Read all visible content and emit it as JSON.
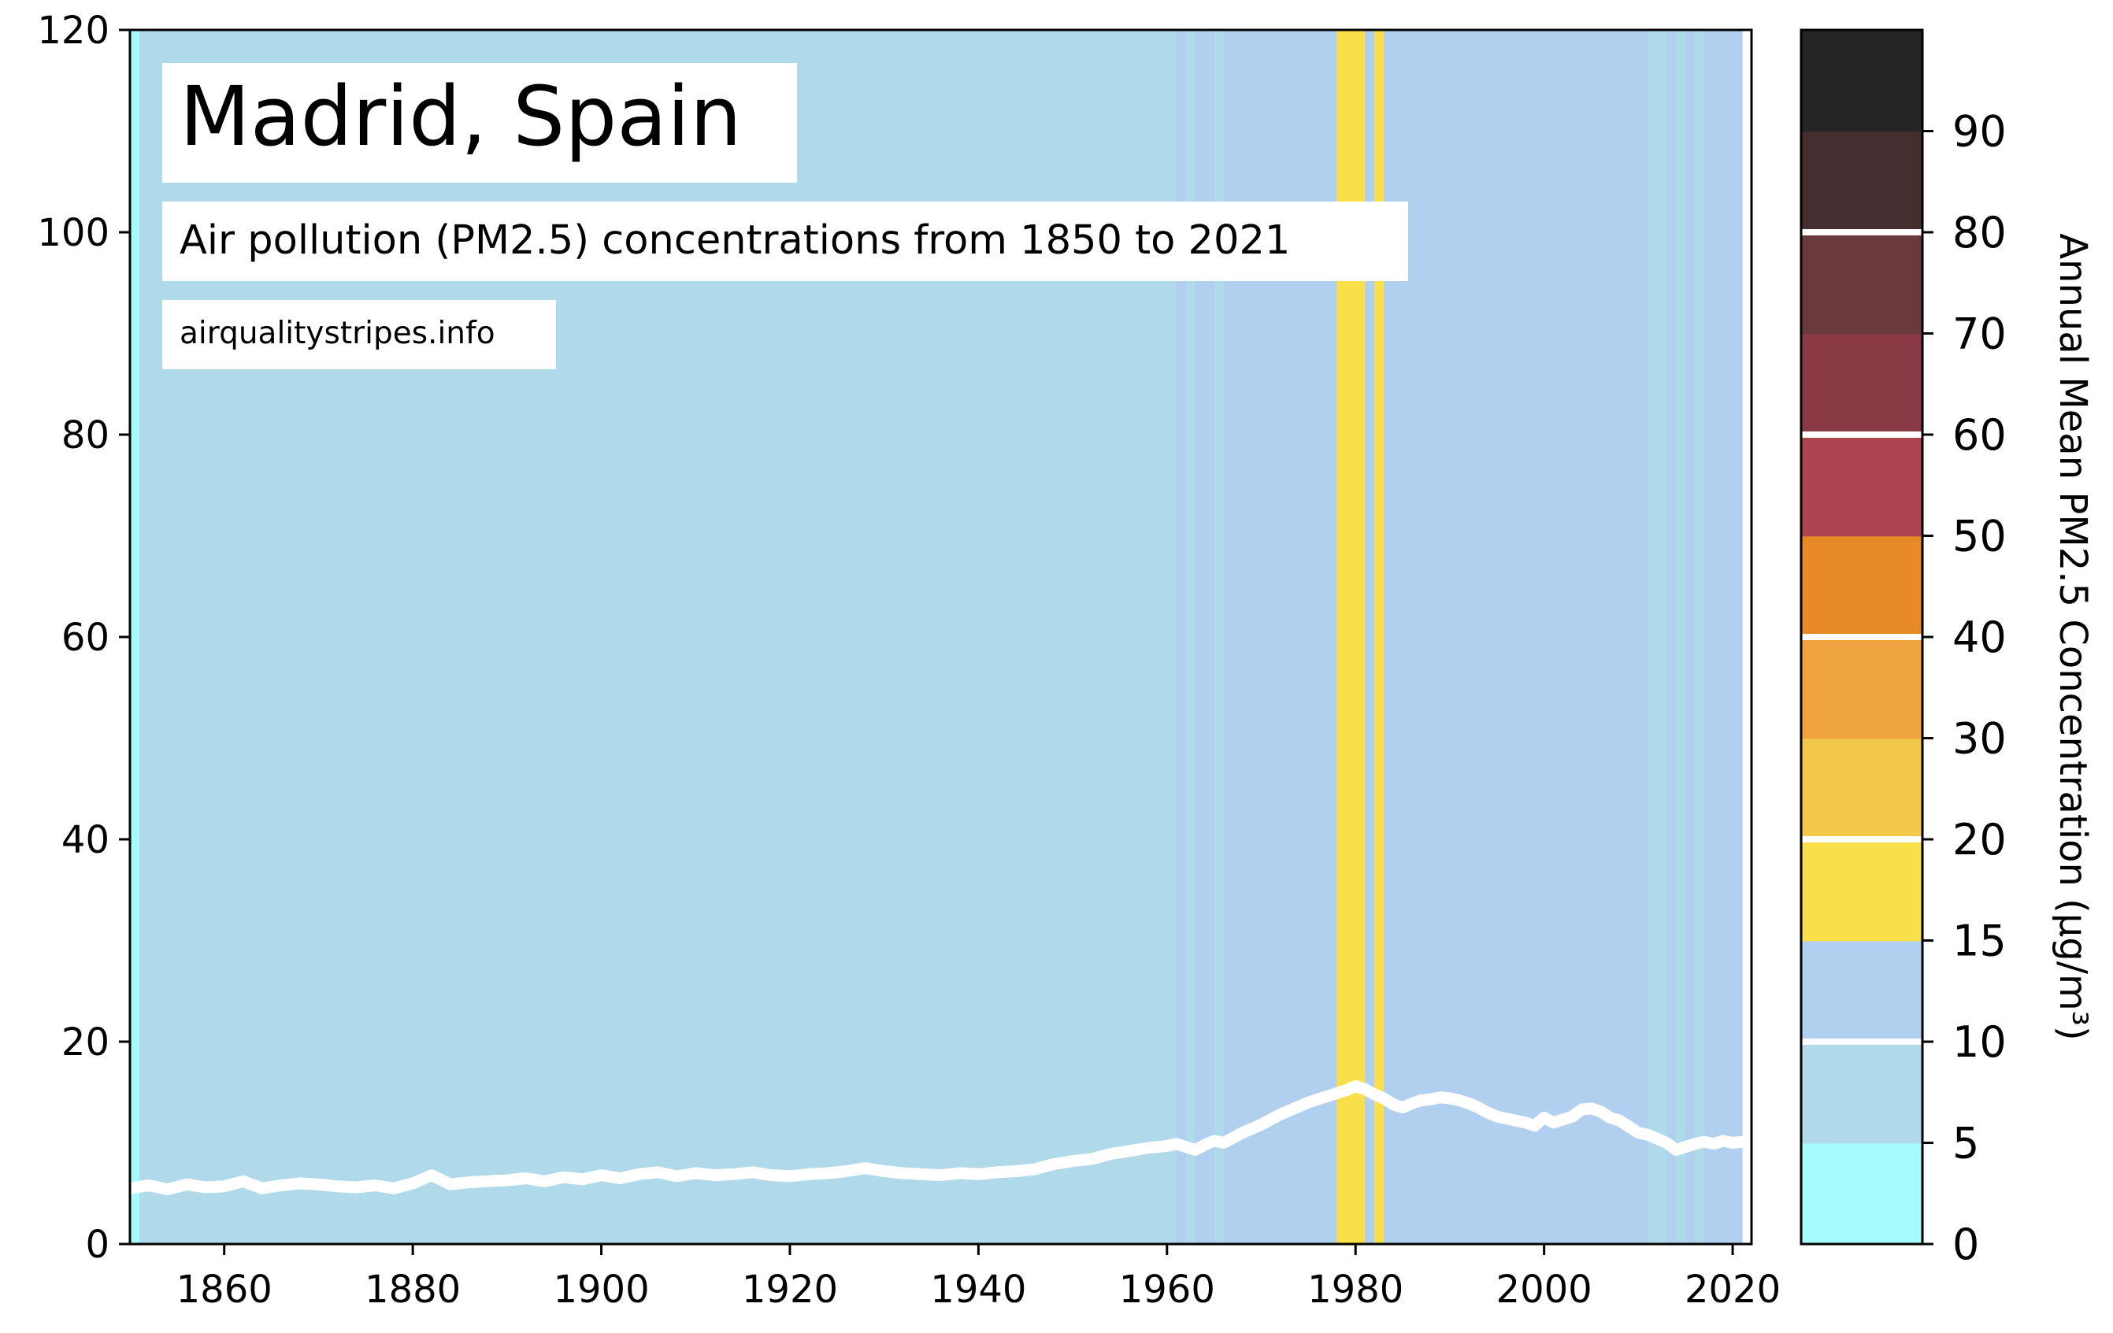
{
  "chart_data": {
    "type": "line",
    "title": "Madrid, Spain",
    "subtitle": "Air pollution (PM2.5) concentrations from 1850 to 2021",
    "source": "airqualitystripes.info",
    "xlabel": "",
    "ylabel": "",
    "xlim": [
      1850,
      2022
    ],
    "ylim": [
      0,
      120
    ],
    "x_ticks": [
      1860,
      1880,
      1900,
      1920,
      1940,
      1960,
      1980,
      2000,
      2020
    ],
    "y_ticks": [
      0,
      20,
      40,
      60,
      80,
      100,
      120
    ],
    "stripe_colors": {
      "cyan": "#a6fcfc",
      "lightblue": "#b0dae9",
      "blue": "#b1cfee",
      "yellow": "#f9e04b"
    },
    "series": [
      {
        "name": "Annual Mean PM2.5",
        "color": "#ffffff",
        "x": [
          1850,
          1852,
          1854,
          1856,
          1858,
          1860,
          1862,
          1864,
          1866,
          1868,
          1870,
          1872,
          1874,
          1876,
          1878,
          1880,
          1882,
          1884,
          1886,
          1888,
          1890,
          1892,
          1894,
          1896,
          1898,
          1900,
          1902,
          1904,
          1906,
          1908,
          1910,
          1912,
          1914,
          1916,
          1918,
          1920,
          1922,
          1924,
          1926,
          1928,
          1930,
          1932,
          1934,
          1936,
          1938,
          1940,
          1942,
          1944,
          1946,
          1948,
          1950,
          1952,
          1954,
          1956,
          1958,
          1960,
          1961,
          1962,
          1963,
          1964,
          1965,
          1966,
          1967,
          1968,
          1969,
          1970,
          1971,
          1972,
          1973,
          1974,
          1975,
          1976,
          1977,
          1978,
          1979,
          1980,
          1981,
          1982,
          1983,
          1984,
          1985,
          1986,
          1987,
          1988,
          1989,
          1990,
          1991,
          1992,
          1993,
          1994,
          1995,
          1996,
          1997,
          1998,
          1999,
          2000,
          2001,
          2002,
          2003,
          2004,
          2005,
          2006,
          2007,
          2008,
          2009,
          2010,
          2011,
          2012,
          2013,
          2014,
          2015,
          2016,
          2017,
          2018,
          2019,
          2020,
          2021,
          2022
        ],
        "values": [
          5.5,
          5.8,
          5.4,
          5.9,
          5.6,
          5.7,
          6.2,
          5.5,
          5.8,
          6.0,
          5.9,
          5.7,
          5.6,
          5.8,
          5.5,
          6.0,
          6.8,
          5.9,
          6.1,
          6.2,
          6.3,
          6.5,
          6.2,
          6.6,
          6.4,
          6.8,
          6.5,
          6.9,
          7.1,
          6.7,
          7.0,
          6.8,
          6.9,
          7.1,
          6.8,
          6.7,
          6.9,
          7.0,
          7.2,
          7.5,
          7.2,
          7.0,
          6.9,
          6.8,
          7.0,
          6.9,
          7.1,
          7.2,
          7.4,
          7.9,
          8.2,
          8.4,
          8.9,
          9.2,
          9.5,
          9.7,
          9.9,
          9.6,
          9.3,
          9.8,
          10.2,
          10.0,
          10.5,
          11.0,
          11.4,
          11.8,
          12.3,
          12.8,
          13.2,
          13.6,
          14.0,
          14.3,
          14.6,
          14.9,
          15.2,
          15.6,
          15.3,
          14.8,
          14.4,
          13.8,
          13.5,
          13.9,
          14.2,
          14.3,
          14.5,
          14.4,
          14.2,
          13.9,
          13.5,
          13.0,
          12.6,
          12.4,
          12.2,
          12.0,
          11.7,
          12.5,
          12.0,
          12.3,
          12.6,
          13.3,
          13.4,
          13.1,
          12.5,
          12.2,
          11.6,
          11.0,
          10.8,
          10.4,
          10.0,
          9.3,
          9.6,
          9.9,
          10.1,
          9.9,
          10.2,
          10.0,
          10.1,
          9.9
        ]
      }
    ],
    "stripes": {
      "years_from": 1850,
      "classes": [
        "cyan",
        "lightblue",
        "lightblue",
        "lightblue",
        "lightblue",
        "lightblue",
        "lightblue",
        "lightblue",
        "lightblue",
        "lightblue",
        "lightblue",
        "lightblue",
        "lightblue",
        "lightblue",
        "lightblue",
        "lightblue",
        "lightblue",
        "lightblue",
        "lightblue",
        "lightblue",
        "lightblue",
        "lightblue",
        "lightblue",
        "lightblue",
        "lightblue",
        "lightblue",
        "lightblue",
        "lightblue",
        "lightblue",
        "lightblue",
        "lightblue",
        "lightblue",
        "lightblue",
        "lightblue",
        "lightblue",
        "lightblue",
        "lightblue",
        "lightblue",
        "lightblue",
        "lightblue",
        "lightblue",
        "lightblue",
        "lightblue",
        "lightblue",
        "lightblue",
        "lightblue",
        "lightblue",
        "lightblue",
        "lightblue",
        "lightblue",
        "lightblue",
        "lightblue",
        "lightblue",
        "lightblue",
        "lightblue",
        "lightblue",
        "lightblue",
        "lightblue",
        "lightblue",
        "lightblue",
        "lightblue",
        "lightblue",
        "lightblue",
        "lightblue",
        "lightblue",
        "lightblue",
        "lightblue",
        "lightblue",
        "lightblue",
        "lightblue",
        "lightblue",
        "lightblue",
        "lightblue",
        "lightblue",
        "lightblue",
        "lightblue",
        "lightblue",
        "lightblue",
        "lightblue",
        "lightblue",
        "lightblue",
        "lightblue",
        "lightblue",
        "lightblue",
        "lightblue",
        "lightblue",
        "lightblue",
        "lightblue",
        "lightblue",
        "lightblue",
        "lightblue",
        "lightblue",
        "lightblue",
        "lightblue",
        "lightblue",
        "lightblue",
        "lightblue",
        "lightblue",
        "lightblue",
        "lightblue",
        "lightblue",
        "lightblue",
        "lightblue",
        "lightblue",
        "lightblue",
        "lightblue",
        "lightblue",
        "lightblue",
        "lightblue",
        "lightblue",
        "lightblue",
        "blue",
        "lightblue",
        "blue",
        "blue",
        "lightblue",
        "blue",
        "blue",
        "blue",
        "blue",
        "blue",
        "blue",
        "blue",
        "blue",
        "blue",
        "blue",
        "blue",
        "blue",
        "yellow",
        "yellow",
        "yellow",
        "blue",
        "yellow",
        "blue",
        "blue",
        "blue",
        "blue",
        "blue",
        "blue",
        "blue",
        "blue",
        "blue",
        "blue",
        "blue",
        "blue",
        "blue",
        "blue",
        "blue",
        "blue",
        "blue",
        "blue",
        "blue",
        "blue",
        "blue",
        "blue",
        "blue",
        "blue",
        "blue",
        "blue",
        "blue",
        "blue",
        "lightblue",
        "lightblue",
        "blue",
        "lightblue",
        "blue",
        "lightblue",
        "blue",
        "blue",
        "blue",
        "blue"
      ]
    },
    "colorbar": {
      "label": "Annual Mean PM2.5 Concentration (µg/m³)",
      "tick_labels": [
        "0",
        "5",
        "10",
        "15",
        "20",
        "30",
        "40",
        "50",
        "60",
        "70",
        "80",
        "90"
      ],
      "bands": [
        {
          "from": "0",
          "to": "5",
          "color": "#a6fcfc"
        },
        {
          "from": "5",
          "to": "10",
          "color": "#b0dae9"
        },
        {
          "from": "10",
          "to": "15",
          "color": "#b1cfee"
        },
        {
          "from": "15",
          "to": "20",
          "color": "#f9e04b"
        },
        {
          "from": "20",
          "to": "30",
          "color": "#f2c84b"
        },
        {
          "from": "30",
          "to": "40",
          "color": "#f0a43f"
        },
        {
          "from": "40",
          "to": "50",
          "color": "#e78a25"
        },
        {
          "from": "50",
          "to": "60",
          "color": "#ad4550"
        },
        {
          "from": "60",
          "to": "70",
          "color": "#8a3a45"
        },
        {
          "from": "70",
          "to": "80",
          "color": "#69393b"
        },
        {
          "from": "80",
          "to": "90",
          "color": "#462d30"
        },
        {
          "from": "90",
          "to": "",
          "color": "#252525"
        }
      ],
      "separators_after": [
        "5",
        "15",
        "30",
        "50",
        "70"
      ]
    }
  }
}
